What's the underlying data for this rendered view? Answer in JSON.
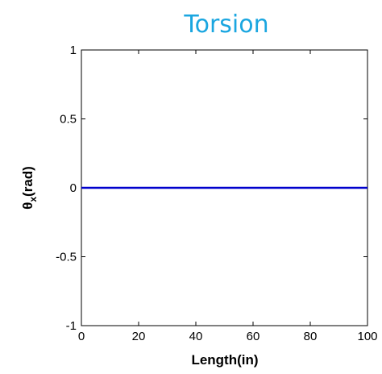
{
  "chart_data": {
    "type": "line",
    "title": "Torsion",
    "title_color": "#1aa6e0",
    "xlabel": "Length(in)",
    "ylabel_main": "θ",
    "ylabel_sub": "x",
    "ylabel_suffix": "(rad)",
    "xlim": [
      0,
      100
    ],
    "ylim": [
      -1,
      1
    ],
    "x_ticks": [
      0,
      20,
      40,
      60,
      80,
      100
    ],
    "x_tick_labels": [
      "0",
      "20",
      "40",
      "60",
      "80",
      "100"
    ],
    "y_ticks": [
      -1,
      -0.5,
      0,
      0.5,
      1
    ],
    "y_tick_labels": [
      "-1",
      "-0.5",
      "0",
      "0.5",
      "1"
    ],
    "grid": false,
    "series": [
      {
        "color": "#0000cc",
        "x": [
          0,
          100
        ],
        "y": [
          0,
          0
        ]
      }
    ]
  }
}
